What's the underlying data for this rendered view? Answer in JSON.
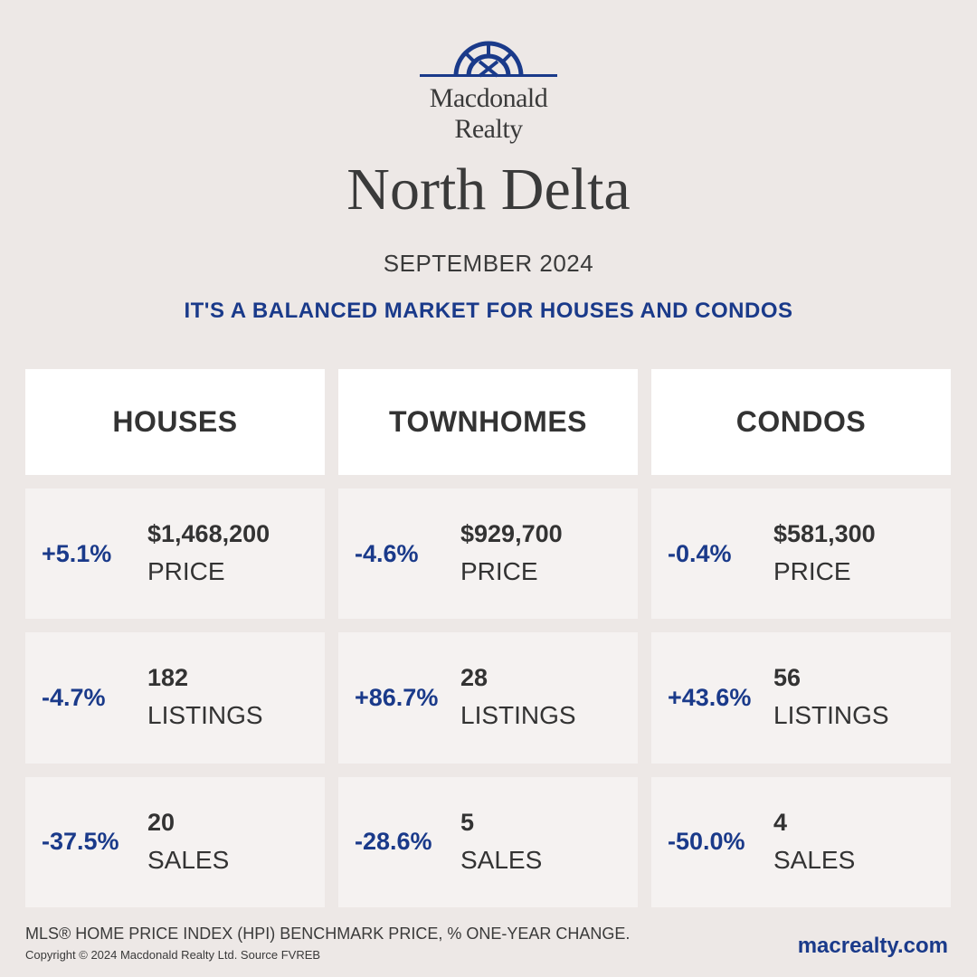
{
  "brand": {
    "line1": "Macdonald",
    "line2": "Realty",
    "color": "#1a3a8a"
  },
  "title": "North Delta",
  "date": "SEPTEMBER 2024",
  "headline": "IT'S A BALANCED MARKET FOR HOUSES AND CONDOS",
  "columns": [
    {
      "title": "HOUSES",
      "price": {
        "change": "+5.1%",
        "value": "$1,468,200",
        "label": "PRICE"
      },
      "listings": {
        "change": "-4.7%",
        "value": "182",
        "label": "LISTINGS"
      },
      "sales": {
        "change": "-37.5%",
        "value": "20",
        "label": "SALES"
      }
    },
    {
      "title": "TOWNHOMES",
      "price": {
        "change": "-4.6%",
        "value": "$929,700",
        "label": "PRICE"
      },
      "listings": {
        "change": "+86.7%",
        "value": "28",
        "label": "LISTINGS"
      },
      "sales": {
        "change": "-28.6%",
        "value": "5",
        "label": "SALES"
      }
    },
    {
      "title": "CONDOS",
      "price": {
        "change": "-0.4%",
        "value": "$581,300",
        "label": "PRICE"
      },
      "listings": {
        "change": "+43.6%",
        "value": "56",
        "label": "LISTINGS"
      },
      "sales": {
        "change": "-50.0%",
        "value": "4",
        "label": "SALES"
      }
    }
  ],
  "footer": {
    "note": "MLS® HOME PRICE INDEX (HPI) BENCHMARK PRICE, % ONE-YEAR CHANGE.",
    "copyright": "Copyright © 2024 Macdonald Realty Ltd. Source FVREB",
    "website": "macrealty.com"
  },
  "colors": {
    "accent": "#1a3a8a",
    "background": "#ede8e6",
    "card": "#f5f2f1",
    "header": "#ffffff"
  }
}
